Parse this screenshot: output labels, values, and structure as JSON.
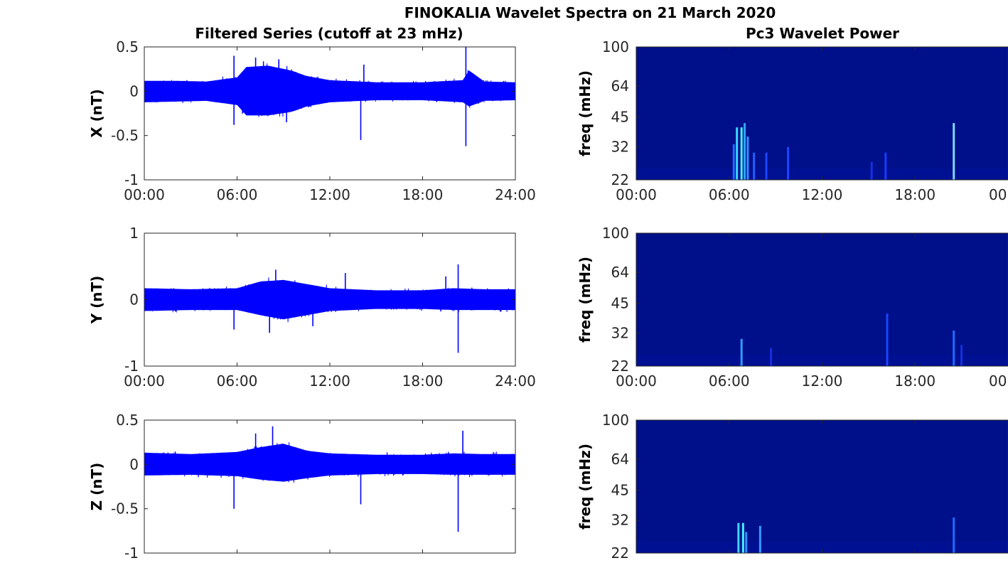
{
  "figure": {
    "suptitle": "FINOKALIA Wavelet Spectra on 21 March 2020",
    "left_column_title": "Filtered Series (cutoff at 23 mHz)",
    "right_column_title": "Pc3 Wavelet Power"
  },
  "chart_data": [
    {
      "type": "line",
      "title": "Filtered Series (cutoff at 23 mHz)",
      "ylabel": "X (nT)",
      "xlabel": "",
      "x_ticks": [
        "00:00",
        "06:00",
        "12:00",
        "18:00",
        "24:00"
      ],
      "xlim": [
        0,
        24
      ],
      "ylim": [
        -1,
        0.5
      ],
      "y_ticks": [
        "0.5",
        "0",
        "-0.5",
        "-1"
      ],
      "y_tick_values": [
        0.5,
        0,
        -0.5,
        -1
      ],
      "line_color": "#0000ff",
      "series": [
        {
          "envelope": [
            [
              0,
              -0.16,
              0.15
            ],
            [
              2,
              -0.15,
              0.15
            ],
            [
              4,
              -0.14,
              0.14
            ],
            [
              6,
              -0.2,
              0.2
            ],
            [
              6.6,
              -0.35,
              0.35
            ],
            [
              8,
              -0.35,
              0.37
            ],
            [
              9.5,
              -0.3,
              0.3
            ],
            [
              10.5,
              -0.22,
              0.22
            ],
            [
              12,
              -0.16,
              0.16
            ],
            [
              15,
              -0.13,
              0.13
            ],
            [
              18,
              -0.13,
              0.13
            ],
            [
              20.6,
              -0.16,
              0.16
            ],
            [
              21,
              -0.22,
              0.3
            ],
            [
              22,
              -0.14,
              0.14
            ],
            [
              24,
              -0.13,
              0.13
            ]
          ],
          "spikes": [
            [
              5.8,
              0.4
            ],
            [
              5.8,
              -0.38
            ],
            [
              14.0,
              -0.55
            ],
            [
              14.2,
              0.3
            ],
            [
              20.8,
              0.5
            ],
            [
              20.8,
              -0.62
            ],
            [
              7.2,
              0.38
            ],
            [
              8.7,
              0.36
            ],
            [
              9.2,
              -0.35
            ]
          ]
        }
      ]
    },
    {
      "type": "line",
      "title": "",
      "ylabel": "Y (nT)",
      "xlabel": "",
      "x_ticks": [
        "00:00",
        "06:00",
        "12:00",
        "18:00",
        "24:00"
      ],
      "xlim": [
        0,
        24
      ],
      "ylim": [
        -1,
        1
      ],
      "y_ticks": [
        "1",
        "0",
        "-1"
      ],
      "y_tick_values": [
        1,
        0,
        -1
      ],
      "line_color": "#0000ff",
      "series": [
        {
          "envelope": [
            [
              0,
              -0.22,
              0.22
            ],
            [
              3,
              -0.2,
              0.2
            ],
            [
              6,
              -0.2,
              0.22
            ],
            [
              7.5,
              -0.3,
              0.35
            ],
            [
              9,
              -0.38,
              0.38
            ],
            [
              10.5,
              -0.3,
              0.3
            ],
            [
              12,
              -0.22,
              0.22
            ],
            [
              15,
              -0.18,
              0.18
            ],
            [
              18,
              -0.18,
              0.18
            ],
            [
              20,
              -0.2,
              0.22
            ],
            [
              22,
              -0.2,
              0.2
            ],
            [
              24,
              -0.2,
              0.2
            ]
          ],
          "spikes": [
            [
              20.3,
              0.53
            ],
            [
              20.3,
              -0.8
            ],
            [
              5.8,
              -0.45
            ],
            [
              8.5,
              0.45
            ],
            [
              8.1,
              -0.5
            ],
            [
              10.9,
              -0.4
            ],
            [
              13.0,
              0.4
            ],
            [
              19.5,
              0.35
            ]
          ]
        }
      ]
    },
    {
      "type": "line",
      "title": "",
      "ylabel": "Z (nT)",
      "xlabel": "",
      "x_ticks": [],
      "xlim": [
        0,
        24
      ],
      "ylim": [
        -1,
        0.5
      ],
      "y_ticks": [
        "0.5",
        "0",
        "-0.5",
        "-1"
      ],
      "y_tick_values": [
        0.5,
        0,
        -0.5,
        -1
      ],
      "line_color": "#0000ff",
      "series": [
        {
          "envelope": [
            [
              0,
              -0.16,
              0.17
            ],
            [
              3,
              -0.15,
              0.15
            ],
            [
              6,
              -0.17,
              0.18
            ],
            [
              7.5,
              -0.22,
              0.25
            ],
            [
              9,
              -0.25,
              0.3
            ],
            [
              10.5,
              -0.2,
              0.2
            ],
            [
              12,
              -0.16,
              0.16
            ],
            [
              15,
              -0.14,
              0.14
            ],
            [
              18,
              -0.14,
              0.14
            ],
            [
              20,
              -0.15,
              0.16
            ],
            [
              22,
              -0.15,
              0.15
            ],
            [
              24,
              -0.15,
              0.15
            ]
          ],
          "spikes": [
            [
              5.8,
              -0.5
            ],
            [
              8.3,
              0.43
            ],
            [
              20.3,
              -0.76
            ],
            [
              20.6,
              0.38
            ],
            [
              7.2,
              0.35
            ],
            [
              14.0,
              -0.45
            ]
          ]
        }
      ]
    },
    {
      "type": "heatmap",
      "title": "Pc3 Wavelet Power",
      "ylabel": "freq (mHz)",
      "x_ticks": [
        "00:00",
        "06:00",
        "12:00",
        "18:00",
        "00"
      ],
      "xlim": [
        0,
        24
      ],
      "y_ticks": [
        "100",
        "64",
        "45",
        "32",
        "22"
      ],
      "y_tick_freqs": [
        100,
        64,
        45,
        32,
        22
      ],
      "ylim": [
        22,
        100
      ],
      "y_scale": "log",
      "background_color": "#000f8a",
      "streaks": [
        [
          6.5,
          40,
          "#3cd6ff"
        ],
        [
          6.8,
          40,
          "#47f0ff"
        ],
        [
          7.0,
          42,
          "#2fa3ff"
        ],
        [
          7.2,
          36,
          "#2f90ff"
        ],
        [
          6.3,
          33,
          "#1e6cff"
        ],
        [
          7.6,
          30,
          "#1e5fff"
        ],
        [
          9.8,
          32,
          "#1a46ff"
        ],
        [
          8.4,
          30,
          "#1a46ff"
        ],
        [
          20.5,
          42,
          "#7fd8ff"
        ],
        [
          16.1,
          30,
          "#1a3bff"
        ],
        [
          15.2,
          27,
          "#1530e0"
        ]
      ]
    },
    {
      "type": "heatmap",
      "title": "",
      "ylabel": "freq (mHz)",
      "x_ticks": [
        "00:00",
        "06:00",
        "12:00",
        "18:00",
        "00"
      ],
      "xlim": [
        0,
        24
      ],
      "y_ticks": [
        "100",
        "64",
        "45",
        "32",
        "22"
      ],
      "y_tick_freqs": [
        100,
        64,
        45,
        32,
        22
      ],
      "ylim": [
        22,
        100
      ],
      "y_scale": "log",
      "background_color": "#000f8a",
      "streaks": [
        [
          6.8,
          30,
          "#2f9dff"
        ],
        [
          8.7,
          27,
          "#1530e0"
        ],
        [
          16.2,
          40,
          "#1a46ff"
        ],
        [
          20.5,
          33,
          "#1e6cff"
        ],
        [
          21.0,
          28,
          "#1530e0"
        ]
      ]
    },
    {
      "type": "heatmap",
      "title": "",
      "ylabel": "freq (mHz)",
      "x_ticks": [],
      "xlim": [
        0,
        24
      ],
      "y_ticks": [
        "100",
        "64",
        "45",
        "32",
        "22"
      ],
      "y_tick_freqs": [
        100,
        64,
        45,
        32,
        22
      ],
      "ylim": [
        22,
        100
      ],
      "y_scale": "log",
      "background_color": "#000f8a",
      "streaks": [
        [
          6.6,
          31,
          "#3cd6ff"
        ],
        [
          6.9,
          31,
          "#47f0ff"
        ],
        [
          7.1,
          28,
          "#2f90ff"
        ],
        [
          8.0,
          30,
          "#2f9dff"
        ],
        [
          20.5,
          33,
          "#1e6cff"
        ]
      ]
    }
  ]
}
